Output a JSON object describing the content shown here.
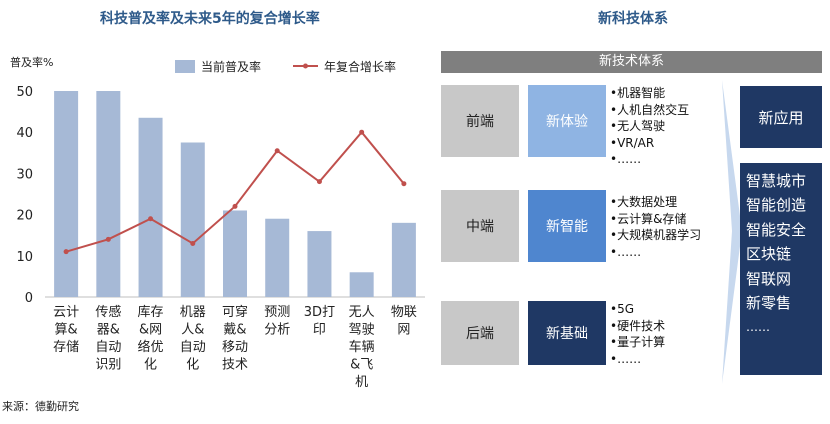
{
  "chart_title": "科技普及率及未来5年的复合增长率",
  "source": "来源：德勤研究",
  "chart_data": {
    "type": "bar",
    "title": "科技普及率及未来5年的复合增长率",
    "ylabel": "普及率%",
    "ylim": [
      0,
      50
    ],
    "yticks": [
      0,
      10,
      20,
      30,
      40,
      50
    ],
    "grid": false,
    "legend_position": "top-right",
    "categories": [
      [
        "云计",
        "算&",
        "存储"
      ],
      [
        "传感",
        "器&",
        "自动",
        "识别"
      ],
      [
        "库存",
        "&网",
        "络优",
        "化"
      ],
      [
        "机器",
        "人&",
        "自动",
        "化"
      ],
      [
        "可穿",
        "戴&",
        "移动",
        "技术"
      ],
      [
        "预测",
        "分析"
      ],
      [
        "3D打",
        "印"
      ],
      [
        "无人",
        "驾驶",
        "车辆",
        "&飞",
        "机"
      ],
      [
        "物联",
        "网"
      ]
    ],
    "series": [
      {
        "name": "当前普及率",
        "type": "bar",
        "color": "#a6b9d6",
        "values": [
          50,
          50,
          43.5,
          37.5,
          21,
          19,
          16,
          6,
          18
        ]
      },
      {
        "name": "年复合增长率",
        "type": "line",
        "color": "#c0504d",
        "values": [
          11,
          14,
          19,
          13,
          22,
          35.5,
          28,
          40,
          27.5
        ]
      }
    ]
  },
  "tech_system": {
    "title": "新科技体系",
    "header": "新技术体系",
    "rows": [
      {
        "tier": "前端",
        "name": "新体验",
        "items": [
          "•机器智能",
          "•人机自然交互",
          "•无人驾驶",
          "•VR/AR",
          "•……"
        ]
      },
      {
        "tier": "中端",
        "name": "新智能",
        "items": [
          "•大数据处理",
          "•云计算&存储",
          "•大规模机器学习",
          "•……"
        ]
      },
      {
        "tier": "后端",
        "name": "新基础",
        "items": [
          "•5G",
          "•硬件技术",
          "•量子计算",
          "•……"
        ]
      }
    ],
    "app_title": "新应用",
    "apps": [
      "智慧城市",
      "智能创造",
      "智能安全",
      "区块链",
      "智联网",
      "新零售",
      "……"
    ]
  }
}
